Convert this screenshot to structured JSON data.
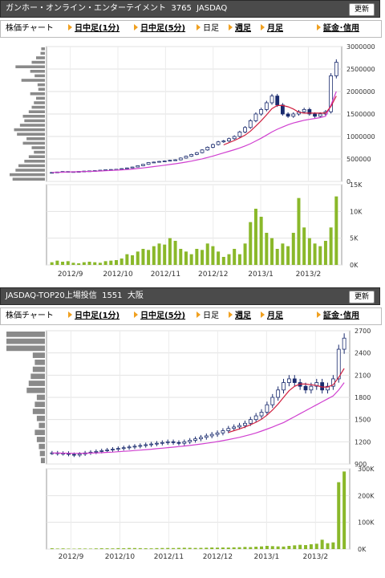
{
  "panels": [
    {
      "title": "ガンホー・オンライン・エンターテイメント  3765  JASDAQ",
      "refresh_label": "更新",
      "nav": {
        "chart_label": "株価チャート",
        "intraday_1": "日中足(1分)",
        "intraday_5": "日中足(5分)",
        "daily": "日足",
        "weekly": "週足",
        "monthly": "月足",
        "margin": "証金･信用"
      },
      "chart_data": {
        "type": "candlestick",
        "price_ticks": [
          "3000000",
          "2500000",
          "2000000",
          "1500000",
          "1000000",
          "500000",
          "0"
        ],
        "price_ylim": [
          0,
          3000000
        ],
        "volume_ticks": [
          "15K",
          "10K",
          "5K",
          "0K"
        ],
        "volume_ylim": [
          0,
          15000
        ],
        "x_labels": [
          "2012/9",
          "2012/10",
          "2012/11",
          "2012/12",
          "2013/1",
          "2013/2"
        ],
        "close": [
          200000,
          210000,
          220000,
          215000,
          218000,
          222000,
          230000,
          235000,
          240000,
          250000,
          260000,
          265000,
          270000,
          285000,
          300000,
          320000,
          350000,
          380000,
          420000,
          430000,
          445000,
          455000,
          470000,
          480000,
          520000,
          560000,
          600000,
          640000,
          700000,
          760000,
          820000,
          880000,
          900000,
          950000,
          1000000,
          1100000,
          1200000,
          1350000,
          1500000,
          1600000,
          1750000,
          1900000,
          1700000,
          1500000,
          1450000,
          1500000,
          1550000,
          1600000,
          1500000,
          1450000,
          1500000,
          1550000,
          2350000,
          2650000
        ],
        "ma": [
          200000,
          202000,
          206000,
          210000,
          213000,
          216000,
          219000,
          223000,
          227000,
          232000,
          238000,
          244000,
          250000,
          257000,
          265000,
          275000,
          287000,
          300000,
          315000,
          330000,
          345000,
          360000,
          376000,
          392000,
          410000,
          430000,
          452000,
          476000,
          502000,
          532000,
          565000,
          600000,
          635000,
          670000,
          705000,
          745000,
          790000,
          840000,
          900000,
          960000,
          1030000,
          1100000,
          1160000,
          1210000,
          1260000,
          1300000,
          1330000,
          1360000,
          1380000,
          1400000,
          1420000,
          1450000,
          1700000,
          2000000
        ],
        "volume": [
          500,
          800,
          600,
          700,
          400,
          300,
          500,
          600,
          500,
          400,
          700,
          800,
          900,
          1200,
          2000,
          1800,
          2500,
          3000,
          2800,
          3500,
          4000,
          3800,
          5000,
          4500,
          3000,
          2500,
          2000,
          3000,
          2800,
          4000,
          3500,
          2500,
          1500,
          2000,
          3000,
          2000,
          4000,
          8000,
          10500,
          9000,
          6000,
          5000,
          3000,
          4000,
          3500,
          6000,
          12500,
          7000,
          5000,
          4000,
          3500,
          4500,
          7000,
          12800
        ],
        "depth_bars": [
          5,
          6,
          12,
          18,
          40,
          20,
          14,
          32,
          10,
          9,
          20,
          12,
          15,
          18,
          22,
          30,
          28,
          34,
          42,
          38,
          25,
          30,
          18,
          15,
          22,
          28,
          36,
          40,
          48,
          44
        ]
      }
    },
    {
      "title": "JASDAQ-TOP20上場投信  1551  大阪",
      "refresh_label": "更新",
      "nav": {
        "chart_label": "株価チャート",
        "intraday_1": "日中足(1分)",
        "intraday_5": "日中足(5分)",
        "daily": "日足",
        "weekly": "週足",
        "monthly": "月足",
        "margin": "証金･信用"
      },
      "chart_data": {
        "type": "candlestick",
        "price_ticks": [
          "2700",
          "2400",
          "2100",
          "1800",
          "1500",
          "1200",
          "900"
        ],
        "price_ylim": [
          900,
          2700
        ],
        "volume_ticks": [
          "300K",
          "200K",
          "100K",
          "0K"
        ],
        "volume_ylim": [
          0,
          300000
        ],
        "x_labels": [
          "2012/9",
          "2012/10",
          "2012/11",
          "2012/12",
          "2013/1",
          "2013/2"
        ],
        "close": [
          1050,
          1040,
          1045,
          1030,
          1020,
          1035,
          1050,
          1060,
          1070,
          1080,
          1090,
          1100,
          1110,
          1120,
          1130,
          1140,
          1150,
          1160,
          1170,
          1180,
          1190,
          1200,
          1190,
          1180,
          1200,
          1220,
          1240,
          1260,
          1280,
          1300,
          1320,
          1350,
          1380,
          1400,
          1420,
          1450,
          1500,
          1550,
          1600,
          1700,
          1800,
          1900,
          2000,
          2050,
          2000,
          1950,
          1900,
          1950,
          2000,
          1900,
          1950,
          2050,
          2450,
          2600
        ],
        "ma": [
          1050,
          1048,
          1046,
          1045,
          1044,
          1044,
          1045,
          1047,
          1050,
          1053,
          1057,
          1061,
          1066,
          1071,
          1076,
          1082,
          1088,
          1094,
          1100,
          1107,
          1114,
          1121,
          1128,
          1135,
          1143,
          1151,
          1160,
          1170,
          1180,
          1191,
          1203,
          1216,
          1230,
          1245,
          1260,
          1278,
          1298,
          1320,
          1345,
          1372,
          1400,
          1430,
          1460,
          1500,
          1540,
          1580,
          1620,
          1660,
          1700,
          1740,
          1780,
          1820,
          1900,
          2000
        ],
        "volume": [
          3000,
          2000,
          2500,
          1800,
          1500,
          2200,
          2000,
          1800,
          2500,
          3000,
          2800,
          2600,
          3500,
          3200,
          4000,
          3800,
          3500,
          3000,
          2800,
          3600,
          4000,
          4200,
          3800,
          4500,
          5000,
          4800,
          4200,
          4600,
          5200,
          6000,
          5500,
          6000,
          5800,
          6500,
          7000,
          8000,
          7500,
          9000,
          10000,
          12000,
          11000,
          10000,
          9500,
          12000,
          14000,
          16000,
          15000,
          18000,
          20000,
          35000,
          22000,
          25000,
          250000,
          290000
        ],
        "depth_bars": [
          38,
          38,
          38,
          12,
          10,
          12,
          14,
          16,
          18,
          8,
          10,
          12,
          8,
          6,
          10,
          8,
          6,
          5,
          4
        ]
      }
    }
  ]
}
